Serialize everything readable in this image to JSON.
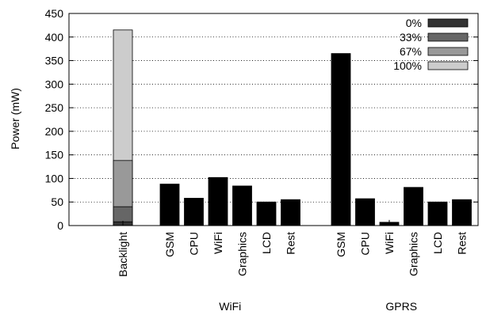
{
  "chart_data": {
    "type": "bar",
    "ylabel": "Power (mW)",
    "ylim": [
      0,
      450
    ],
    "yticks": [
      0,
      50,
      100,
      150,
      200,
      250,
      300,
      350,
      400,
      450
    ],
    "grid": "horizontal dotted",
    "legend_position": "top-right",
    "legend": [
      {
        "label": "0%",
        "color": "#333333"
      },
      {
        "label": "33%",
        "color": "#666666"
      },
      {
        "label": "67%",
        "color": "#999999"
      },
      {
        "label": "100%",
        "color": "#cccccc"
      }
    ],
    "backlight": {
      "category": "Backlight",
      "levels": [
        {
          "label": "0%",
          "value": 8
        },
        {
          "label": "33%",
          "value": 40
        },
        {
          "label": "67%",
          "value": 138
        },
        {
          "label": "100%",
          "value": 415
        }
      ]
    },
    "groups": [
      {
        "name": "WiFi",
        "categories": [
          "GSM",
          "CPU",
          "WiFi",
          "Graphics",
          "LCD",
          "Rest"
        ],
        "values": [
          88,
          58,
          102,
          84,
          50,
          55
        ]
      },
      {
        "name": "GPRS",
        "categories": [
          "GSM",
          "CPU",
          "WiFi",
          "Graphics",
          "LCD",
          "Rest"
        ],
        "values": [
          365,
          57,
          7,
          81,
          50,
          55
        ]
      }
    ],
    "bar_color": "#000000"
  }
}
